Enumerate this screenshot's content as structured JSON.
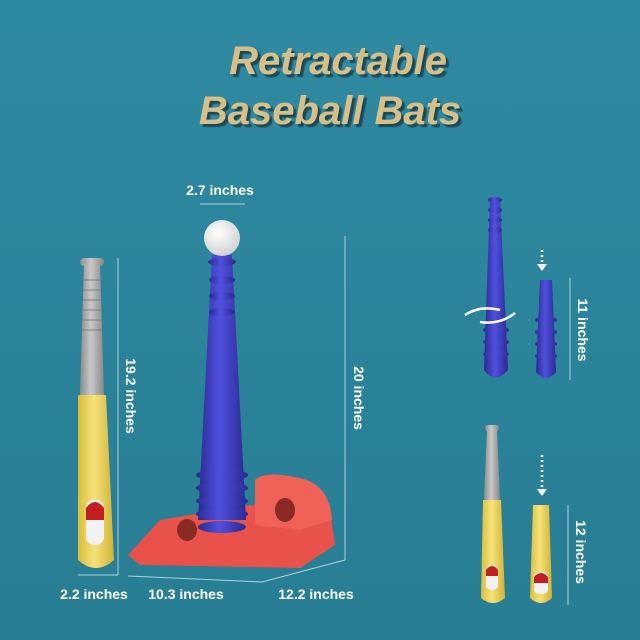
{
  "title": {
    "line1": "Retractable",
    "line2": "Baseball Bats"
  },
  "dimensions": {
    "bat_length": "19.2 inches",
    "bat_width": "2.2 inches",
    "ball_width": "2.7 inches",
    "tee_height": "20 inches",
    "base_width": "10.3 inches",
    "base_depth": "12.2 inches",
    "blue_bat_section": "11 inches",
    "yellow_bat_section": "12 inches"
  },
  "colors": {
    "background": "#2d879d",
    "title": "#d6bf88",
    "blue": "#3a3ab8",
    "red": "#e8524a",
    "yellow": "#efd75a",
    "gray": "#a8a8a8"
  }
}
